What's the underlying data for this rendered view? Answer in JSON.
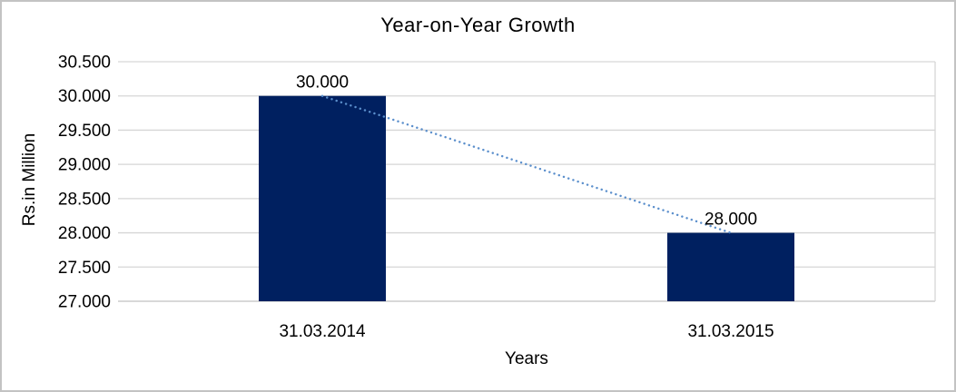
{
  "chart_data": {
    "type": "bar",
    "title": "Year-on-Year Growth",
    "xlabel": "Years",
    "ylabel": "Rs.in Million",
    "categories": [
      "31.03.2014",
      "31.03.2015"
    ],
    "values": [
      30.0,
      28.0
    ],
    "value_labels": [
      "30.000",
      "28.000"
    ],
    "y_ticks": {
      "values": [
        27.0,
        27.5,
        28.0,
        28.5,
        29.0,
        29.5,
        30.0,
        30.5
      ],
      "labels": [
        "27.000",
        "27.500",
        "28.000",
        "28.500",
        "29.000",
        "29.500",
        "30.000",
        "30.500"
      ]
    },
    "ylim": [
      27.0,
      30.5
    ],
    "grid": true,
    "legend": null,
    "trendline_style": "dotted",
    "colors": {
      "bar": "#002060",
      "trendline": "#5B8FCC",
      "gridline": "#D6D6D6",
      "axis_line": "#C0C0C0",
      "text": "#000000",
      "frame_border": "#C3C3C3"
    }
  }
}
